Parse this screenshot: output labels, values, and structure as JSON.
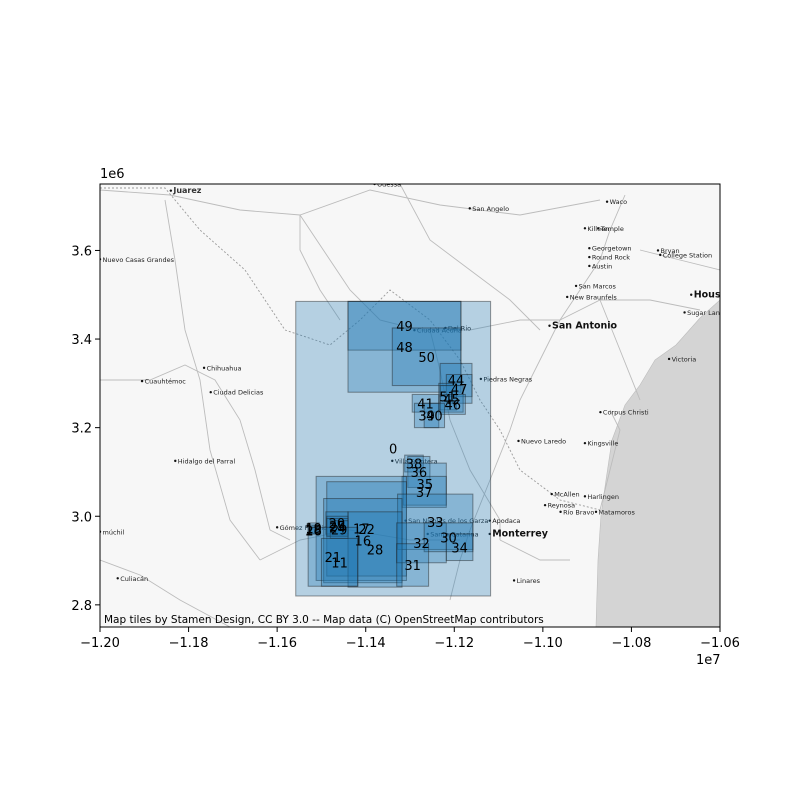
{
  "chart_data": {
    "type": "map",
    "xlim": [
      -12000000,
      -10600000
    ],
    "ylim": [
      2750000,
      3750000
    ],
    "x_ticks": [
      {
        "value": -12000000,
        "label": "−1.20"
      },
      {
        "value": -11800000,
        "label": "−1.18"
      },
      {
        "value": -11600000,
        "label": "−1.16"
      },
      {
        "value": -11400000,
        "label": "−1.14"
      },
      {
        "value": -11200000,
        "label": "−1.12"
      },
      {
        "value": -11000000,
        "label": "−1.10"
      },
      {
        "value": -10800000,
        "label": "−1.08"
      },
      {
        "value": -10600000,
        "label": "−1.06"
      }
    ],
    "y_ticks": [
      {
        "value": 2800000,
        "label": "2.8"
      },
      {
        "value": 3000000,
        "label": "3.0"
      },
      {
        "value": 3200000,
        "label": "3.2"
      },
      {
        "value": 3400000,
        "label": "3.4"
      },
      {
        "value": 3600000,
        "label": "3.6"
      }
    ],
    "x_offset_label": "1e7",
    "y_offset_label": "1e6",
    "attribution": "Map tiles by Stamen Design, CC BY 3.0 -- Map data (C) OpenStreetMap contributors",
    "fill_color": "#1f77b4",
    "boxes": [
      {
        "label": "0",
        "x0": -11558000,
        "x1": -11118000,
        "y0": 2820000,
        "y1": 3485000
      },
      {
        "label": "49",
        "x0": -11440000,
        "x1": -11185000,
        "y0": 3375000,
        "y1": 3485000
      },
      {
        "label": "48",
        "x0": -11440000,
        "x1": -11185000,
        "y0": 3280000,
        "y1": 3485000
      },
      {
        "label": "50",
        "x0": -11340000,
        "x1": -11185000,
        "y0": 3295000,
        "y1": 3425000
      },
      {
        "label": "44",
        "x0": -11232000,
        "x1": -11160000,
        "y0": 3270000,
        "y1": 3345000
      },
      {
        "label": "47",
        "x0": -11218000,
        "x1": -11160000,
        "y0": 3255000,
        "y1": 3320000
      },
      {
        "label": "51",
        "x0": -11235000,
        "x1": -11195000,
        "y0": 3240000,
        "y1": 3300000
      },
      {
        "label": "45",
        "x0": -11232000,
        "x1": -11180000,
        "y0": 3235000,
        "y1": 3295000
      },
      {
        "label": "46",
        "x0": -11232000,
        "x1": -11175000,
        "y0": 3230000,
        "y1": 3275000
      },
      {
        "label": "41",
        "x0": -11295000,
        "x1": -11235000,
        "y0": 3235000,
        "y1": 3275000
      },
      {
        "label": "39",
        "x0": -11290000,
        "x1": -11235000,
        "y0": 3200000,
        "y1": 3255000
      },
      {
        "label": "40",
        "x0": -11268000,
        "x1": -11222000,
        "y0": 3200000,
        "y1": 3255000
      },
      {
        "label": "38",
        "x0": -11312000,
        "x1": -11270000,
        "y0": 3100000,
        "y1": 3138000
      },
      {
        "label": "36",
        "x0": -11305000,
        "x1": -11255000,
        "y0": 3065000,
        "y1": 3135000
      },
      {
        "label": "35",
        "x0": -11315000,
        "x1": -11218000,
        "y0": 3025000,
        "y1": 3120000
      },
      {
        "label": "37",
        "x0": -11318000,
        "x1": -11218000,
        "y0": 3020000,
        "y1": 3090000
      },
      {
        "label": "17",
        "x0": -11512000,
        "x1": -11308000,
        "y0": 2855000,
        "y1": 3090000
      },
      {
        "label": "22",
        "x0": -11488000,
        "x1": -11308000,
        "y0": 2865000,
        "y1": 3078000
      },
      {
        "label": "33",
        "x0": -11328000,
        "x1": -11158000,
        "y0": 2925000,
        "y1": 3050000
      },
      {
        "label": "16",
        "x0": -11495000,
        "x1": -11318000,
        "y0": 2850000,
        "y1": 3040000
      },
      {
        "label": "28",
        "x0": -11440000,
        "x1": -11318000,
        "y0": 2840000,
        "y1": 3010000
      },
      {
        "label": "32",
        "x0": -11330000,
        "x1": -11218000,
        "y0": 2895000,
        "y1": 2985000
      },
      {
        "label": "30",
        "x0": -11268000,
        "x1": -11158000,
        "y0": 2920000,
        "y1": 2985000
      },
      {
        "label": "34",
        "x0": -11218000,
        "x1": -11158000,
        "y0": 2900000,
        "y1": 2960000
      },
      {
        "label": "31",
        "x0": -11330000,
        "x1": -11258000,
        "y0": 2842000,
        "y1": 2938000
      },
      {
        "label": "20",
        "x0": -11490000,
        "x1": -11440000,
        "y0": 2960000,
        "y1": 3010000
      },
      {
        "label": "25",
        "x0": -11488000,
        "x1": -11440000,
        "y0": 2955000,
        "y1": 3000000
      },
      {
        "label": "24",
        "x0": -11488000,
        "x1": -11440000,
        "y0": 2955000,
        "y1": 2995000
      },
      {
        "label": "29",
        "x0": -11480000,
        "x1": -11440000,
        "y0": 2950000,
        "y1": 2990000
      },
      {
        "label": "19",
        "x0": -11530000,
        "x1": -11505000,
        "y0": 2962000,
        "y1": 2985000
      },
      {
        "label": "18",
        "x0": -11528000,
        "x1": -11508000,
        "y0": 2960000,
        "y1": 2980000
      },
      {
        "label": "26",
        "x0": -11525000,
        "x1": -11510000,
        "y0": 2960000,
        "y1": 2975000
      },
      {
        "label": "21",
        "x0": -11530000,
        "x1": -11418000,
        "y0": 2842000,
        "y1": 2975000
      },
      {
        "label": "11",
        "x0": -11500000,
        "x1": -11418000,
        "y0": 2842000,
        "y1": 2950000
      }
    ],
    "places": [
      {
        "name": "Juarez",
        "x": -11840000,
        "y": 3735000,
        "size": "med"
      },
      {
        "name": "Odessa",
        "x": -11380000,
        "y": 3750000,
        "size": "small"
      },
      {
        "name": "San Angelo",
        "x": -11165000,
        "y": 3695000,
        "size": "small"
      },
      {
        "name": "Waco",
        "x": -10855000,
        "y": 3710000,
        "size": "small"
      },
      {
        "name": "Killeen",
        "x": -10905000,
        "y": 3650000,
        "size": "small"
      },
      {
        "name": "Temple",
        "x": -10875000,
        "y": 3650000,
        "size": "small"
      },
      {
        "name": "Georgetown",
        "x": -10895000,
        "y": 3605000,
        "size": "small"
      },
      {
        "name": "Bryan",
        "x": -10740000,
        "y": 3600000,
        "size": "small"
      },
      {
        "name": "College Station",
        "x": -10735000,
        "y": 3590000,
        "size": "small"
      },
      {
        "name": "Round Rock",
        "x": -10895000,
        "y": 3585000,
        "size": "small"
      },
      {
        "name": "Austin",
        "x": -10895000,
        "y": 3565000,
        "size": "small"
      },
      {
        "name": "San Marcos",
        "x": -10925000,
        "y": 3520000,
        "size": "small"
      },
      {
        "name": "New Braunfels",
        "x": -10945000,
        "y": 3495000,
        "size": "small"
      },
      {
        "name": "Houston",
        "x": -10665000,
        "y": 3500000,
        "size": "big"
      },
      {
        "name": "Sugar Land",
        "x": -10680000,
        "y": 3460000,
        "size": "small"
      },
      {
        "name": "San Antonio",
        "x": -10985000,
        "y": 3430000,
        "size": "big"
      },
      {
        "name": "Nuevo Casas Grandes",
        "x": -12000000,
        "y": 3580000,
        "size": "small"
      },
      {
        "name": "Chihuahua",
        "x": -11765000,
        "y": 3335000,
        "size": "small"
      },
      {
        "name": "Cuauhtémoc",
        "x": -11905000,
        "y": 3305000,
        "size": "small"
      },
      {
        "name": "Ciudad Delicias",
        "x": -11750000,
        "y": 3280000,
        "size": "small"
      },
      {
        "name": "Victoria",
        "x": -10715000,
        "y": 3355000,
        "size": "small"
      },
      {
        "name": "Corpus Christi",
        "x": -10870000,
        "y": 3235000,
        "size": "small"
      },
      {
        "name": "Kingsville",
        "x": -10905000,
        "y": 3165000,
        "size": "small"
      },
      {
        "name": "Nuevo Laredo",
        "x": -11055000,
        "y": 3170000,
        "size": "small"
      },
      {
        "name": "Hidalgo del Parral",
        "x": -11830000,
        "y": 3125000,
        "size": "small"
      },
      {
        "name": "Villa Frontera",
        "x": -11340000,
        "y": 3125000,
        "size": "small"
      },
      {
        "name": "McAllen",
        "x": -10980000,
        "y": 3050000,
        "size": "small"
      },
      {
        "name": "Harlingen",
        "x": -10905000,
        "y": 3045000,
        "size": "small"
      },
      {
        "name": "Reynosa",
        "x": -10995000,
        "y": 3025000,
        "size": "small"
      },
      {
        "name": "Río Bravo",
        "x": -10960000,
        "y": 3010000,
        "size": "small"
      },
      {
        "name": "Matamoros",
        "x": -10880000,
        "y": 3010000,
        "size": "small"
      },
      {
        "name": "Monterrey",
        "x": -11120000,
        "y": 2960000,
        "size": "big"
      },
      {
        "name": "Apodaca",
        "x": -11120000,
        "y": 2990000,
        "size": "small"
      },
      {
        "name": "Linares",
        "x": -11065000,
        "y": 2855000,
        "size": "small"
      },
      {
        "name": "Gómez Palacio",
        "x": -11600000,
        "y": 2975000,
        "size": "small"
      },
      {
        "name": "múchil",
        "x": -12000000,
        "y": 2965000,
        "size": "small"
      },
      {
        "name": "Culiacán",
        "x": -11960000,
        "y": 2860000,
        "size": "small"
      },
      {
        "name": "Ciudad Acuña",
        "x": -11290000,
        "y": 3420000,
        "size": "small"
      },
      {
        "name": "Del Rio",
        "x": -11220000,
        "y": 3425000,
        "size": "small"
      },
      {
        "name": "Piedras Negras",
        "x": -11140000,
        "y": 3310000,
        "size": "small"
      },
      {
        "name": "San Nicolás de los Garza",
        "x": -11310000,
        "y": 2990000,
        "size": "small"
      },
      {
        "name": "Santa Catarina",
        "x": -11260000,
        "y": 2960000,
        "size": "small"
      }
    ]
  }
}
